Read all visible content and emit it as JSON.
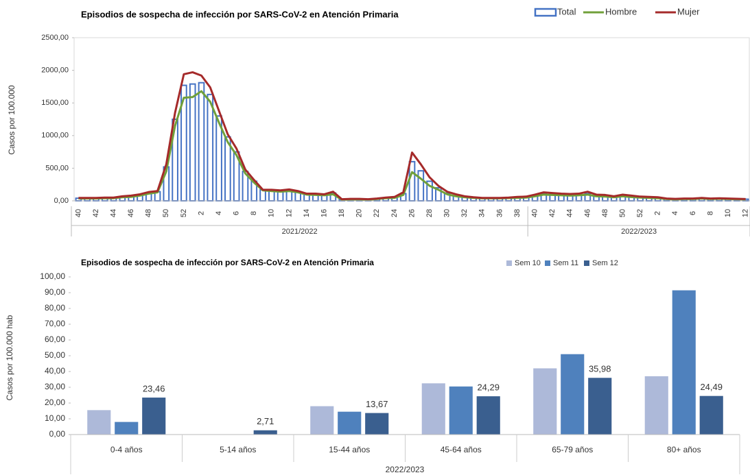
{
  "chart_data": [
    {
      "type": "combo",
      "title": "Episodios de sospecha de infección por SARS-CoV-2 en Atención Primaria",
      "y_label": "Casos por 100.000",
      "categories": [
        "40",
        null,
        "42",
        null,
        "44",
        null,
        "46",
        null,
        "48",
        null,
        "50",
        null,
        "52",
        null,
        "2",
        null,
        "4",
        null,
        "6",
        null,
        "8",
        null,
        "10",
        null,
        "12",
        null,
        "14",
        null,
        "16",
        null,
        "18",
        null,
        "20",
        null,
        "22",
        null,
        "24",
        null,
        "26",
        null,
        "28",
        null,
        "30",
        null,
        "32",
        null,
        "34",
        null,
        "36",
        null,
        "38",
        null,
        "40",
        null,
        "42",
        null,
        "44",
        null,
        "46",
        null,
        "48",
        null,
        "50",
        null,
        "52",
        null,
        "2",
        null,
        "4",
        null,
        "6",
        null,
        "8",
        null,
        "10",
        null,
        "12"
      ],
      "group_labels": [
        "2021/2022",
        "2022/2023"
      ],
      "series": [
        {
          "name": "Total",
          "type": "bar",
          "color": "#4472c4",
          "values": [
            40,
            40,
            40,
            45,
            45,
            60,
            70,
            90,
            120,
            140,
            520,
            1250,
            1770,
            1790,
            1810,
            1630,
            1300,
            980,
            750,
            450,
            300,
            170,
            160,
            150,
            160,
            140,
            100,
            100,
            90,
            120,
            20,
            25,
            25,
            20,
            30,
            45,
            50,
            110,
            600,
            460,
            300,
            200,
            120,
            80,
            60,
            50,
            40,
            40,
            40,
            45,
            50,
            55,
            80,
            110,
            100,
            95,
            90,
            95,
            110,
            80,
            75,
            60,
            80,
            65,
            55,
            50,
            45,
            30,
            25,
            30,
            30,
            40,
            30,
            35,
            30,
            28,
            25
          ]
        },
        {
          "name": "Hombre",
          "type": "line",
          "color": "#70a03a",
          "values": [
            35,
            35,
            35,
            40,
            40,
            55,
            60,
            80,
            110,
            130,
            450,
            1150,
            1580,
            1590,
            1680,
            1520,
            1200,
            900,
            700,
            420,
            280,
            160,
            150,
            140,
            150,
            130,
            95,
            90,
            85,
            100,
            18,
            22,
            22,
            18,
            28,
            40,
            45,
            90,
            440,
            340,
            230,
            170,
            100,
            70,
            55,
            45,
            38,
            38,
            38,
            42,
            45,
            50,
            70,
            95,
            90,
            85,
            80,
            85,
            95,
            70,
            65,
            55,
            70,
            58,
            50,
            45,
            40,
            28,
            22,
            28,
            28,
            35,
            28,
            32,
            28,
            25,
            22
          ]
        },
        {
          "name": "Mujer",
          "type": "line",
          "color": "#a52a2a",
          "values": [
            45,
            45,
            45,
            50,
            50,
            70,
            80,
            100,
            135,
            150,
            560,
            1350,
            1940,
            1970,
            1920,
            1740,
            1380,
            1020,
            800,
            480,
            320,
            170,
            170,
            160,
            175,
            150,
            110,
            110,
            100,
            140,
            25,
            30,
            30,
            25,
            35,
            50,
            60,
            130,
            740,
            560,
            360,
            230,
            140,
            100,
            70,
            55,
            45,
            45,
            45,
            50,
            60,
            65,
            95,
            130,
            120,
            110,
            105,
            110,
            140,
            95,
            90,
            70,
            95,
            80,
            65,
            60,
            55,
            35,
            30,
            35,
            35,
            45,
            35,
            40,
            35,
            32,
            28
          ]
        }
      ],
      "ylim": [
        0,
        2500
      ],
      "yticks": [
        {
          "value": 0,
          "label": "0,00"
        },
        {
          "value": 500,
          "label": "500,00"
        },
        {
          "value": 1000,
          "label": "1000,00"
        },
        {
          "value": 1500,
          "label": "1500,00"
        },
        {
          "value": 2000,
          "label": "2000,00"
        },
        {
          "value": 2500,
          "label": "2500,00"
        }
      ]
    },
    {
      "type": "bar",
      "title": "Episodios de sospecha de infección por SARS-CoV-2 en Atención Primaria",
      "y_label": "Casos por 100.000 hab",
      "x_label": "2022/2023",
      "categories": [
        "0-4 años",
        "5-14 años",
        "15-44 años",
        "45-64 años",
        "65-79 años",
        "80+ años"
      ],
      "series": [
        {
          "name": "Sem 10",
          "color": "#adb9d9",
          "values": [
            15.5,
            0,
            18,
            32.5,
            42,
            37
          ]
        },
        {
          "name": "Sem 11",
          "color": "#4f81bd",
          "values": [
            8,
            0,
            14.5,
            30.5,
            51,
            91.5
          ]
        },
        {
          "name": "Sem 12",
          "color": "#3a5f8f",
          "values": [
            23.46,
            2.71,
            13.67,
            24.29,
            35.98,
            24.49
          ],
          "value_labels": [
            "23,46",
            "2,71",
            "13,67",
            "24,29",
            "35,98",
            "24,49"
          ]
        }
      ],
      "ylim": [
        0,
        100
      ],
      "yticks": [
        {
          "value": 0,
          "label": "0,00"
        },
        {
          "value": 10,
          "label": "10,00"
        },
        {
          "value": 20,
          "label": "20,00"
        },
        {
          "value": 30,
          "label": "30,00"
        },
        {
          "value": 40,
          "label": "40,00"
        },
        {
          "value": 50,
          "label": "50,00"
        },
        {
          "value": 60,
          "label": "60,00"
        },
        {
          "value": 70,
          "label": "70,00"
        },
        {
          "value": 80,
          "label": "80,00"
        },
        {
          "value": 90,
          "label": "90,00"
        },
        {
          "value": 100,
          "label": "100,00"
        }
      ]
    }
  ]
}
